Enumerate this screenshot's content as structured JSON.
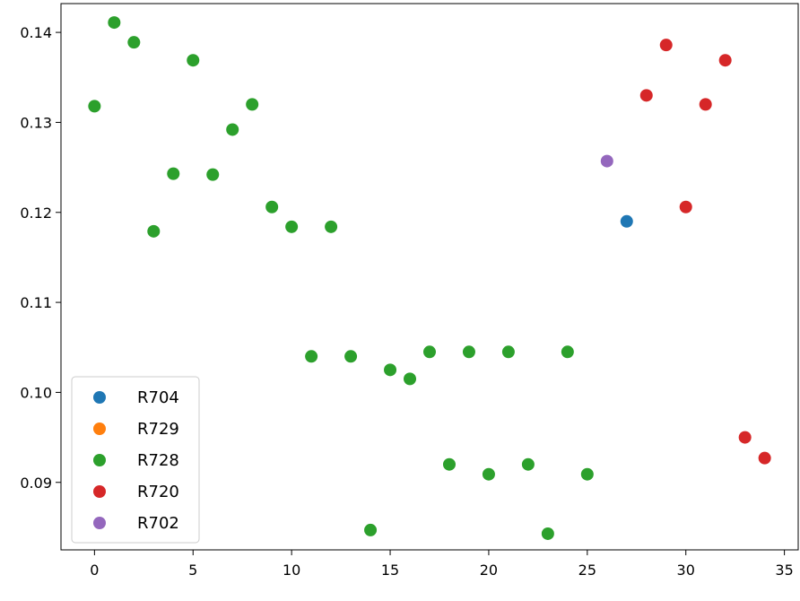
{
  "chart_data": {
    "type": "scatter",
    "title": "",
    "xlabel": "",
    "ylabel": "",
    "xlim": [
      -1.7,
      35.7
    ],
    "ylim": [
      0.0825,
      0.1432
    ],
    "xticks": [
      0,
      5,
      10,
      15,
      20,
      25,
      30,
      35
    ],
    "yticks": [
      0.09,
      0.1,
      0.11,
      0.12,
      0.13,
      0.14
    ],
    "ytick_labels": [
      "0.09",
      "0.10",
      "0.11",
      "0.12",
      "0.13",
      "0.14"
    ],
    "grid": false,
    "legend_position": "lower-left",
    "series": [
      {
        "name": "R704",
        "color": "#1f77b4",
        "points": [
          [
            27,
            0.119
          ]
        ]
      },
      {
        "name": "R729",
        "color": "#ff7f0e",
        "points": []
      },
      {
        "name": "R728",
        "color": "#2ca02c",
        "points": [
          [
            0,
            0.1318
          ],
          [
            1,
            0.1411
          ],
          [
            2,
            0.1389
          ],
          [
            3,
            0.1179
          ],
          [
            4,
            0.1243
          ],
          [
            5,
            0.1369
          ],
          [
            6,
            0.1242
          ],
          [
            7,
            0.1292
          ],
          [
            8,
            0.132
          ],
          [
            9,
            0.1206
          ],
          [
            10,
            0.1184
          ],
          [
            11,
            0.104
          ],
          [
            12,
            0.1184
          ],
          [
            13,
            0.104
          ],
          [
            14,
            0.0847
          ],
          [
            15,
            0.1025
          ],
          [
            16,
            0.1015
          ],
          [
            17,
            0.1045
          ],
          [
            18,
            0.092
          ],
          [
            19,
            0.1045
          ],
          [
            20,
            0.0909
          ],
          [
            21,
            0.1045
          ],
          [
            22,
            0.092
          ],
          [
            23,
            0.0843
          ],
          [
            24,
            0.1045
          ],
          [
            25,
            0.0909
          ]
        ]
      },
      {
        "name": "R720",
        "color": "#d62728",
        "points": [
          [
            28,
            0.133
          ],
          [
            29,
            0.1386
          ],
          [
            30,
            0.1206
          ],
          [
            31,
            0.132
          ],
          [
            32,
            0.1369
          ],
          [
            33,
            0.095
          ],
          [
            34,
            0.0927
          ]
        ]
      },
      {
        "name": "R702",
        "color": "#9467bd",
        "points": [
          [
            26,
            0.1257
          ]
        ]
      }
    ]
  }
}
